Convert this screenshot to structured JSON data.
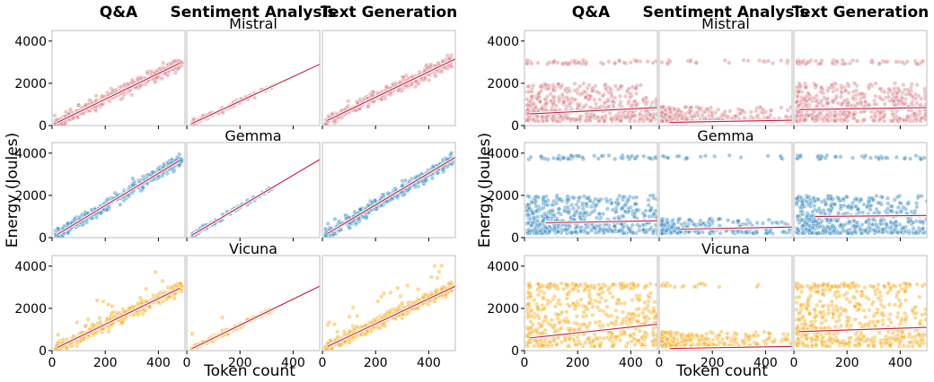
{
  "chart_data": [
    {
      "type": "scatter",
      "description_panel": "left",
      "columns": [
        "Q&A",
        "Sentiment Analysis",
        "Text Generation"
      ],
      "rows": [
        "Mistral",
        "Gemma",
        "Vicuna"
      ],
      "xlabel": "Token count",
      "ylabel": "Energy (Joules)",
      "xlim": [
        0,
        500
      ],
      "ylim": [
        0,
        4500
      ],
      "xticks": [
        0,
        200,
        400
      ],
      "yticks": [
        0,
        2000,
        4000
      ],
      "x_tick_labels": [
        "0",
        "200",
        "400"
      ],
      "y_tick_labels": [
        "0",
        "2000",
        "4000"
      ],
      "series_colors": {
        "Mistral": "#d9868c",
        "Gemma": "#3c8fc4",
        "Vicuna": "#f7ae1c"
      },
      "trend_lines": [
        {
          "row": "Mistral",
          "col": "Q&A",
          "x": [
            20,
            480
          ],
          "y": [
            150,
            2950
          ]
        },
        {
          "row": "Mistral",
          "col": "Sentiment Analysis",
          "x": [
            20,
            500
          ],
          "y": [
            100,
            2900
          ]
        },
        {
          "row": "Mistral",
          "col": "Text Generation",
          "x": [
            20,
            500
          ],
          "y": [
            250,
            3150
          ]
        },
        {
          "row": "Gemma",
          "col": "Q&A",
          "x": [
            20,
            480
          ],
          "y": [
            150,
            3650
          ]
        },
        {
          "row": "Gemma",
          "col": "Sentiment Analysis",
          "x": [
            20,
            500
          ],
          "y": [
            120,
            3700
          ]
        },
        {
          "row": "Gemma",
          "col": "Text Generation",
          "x": [
            20,
            500
          ],
          "y": [
            200,
            3800
          ]
        },
        {
          "row": "Vicuna",
          "col": "Q&A",
          "x": [
            20,
            480
          ],
          "y": [
            150,
            2950
          ]
        },
        {
          "row": "Vicuna",
          "col": "Sentiment Analysis",
          "x": [
            20,
            500
          ],
          "y": [
            100,
            3050
          ]
        },
        {
          "row": "Vicuna",
          "col": "Text Generation",
          "x": [
            20,
            500
          ],
          "y": [
            200,
            3050
          ]
        }
      ]
    },
    {
      "type": "scatter",
      "description_panel": "right",
      "columns": [
        "Q&A",
        "Sentiment Analysis",
        "Text Generation"
      ],
      "rows": [
        "Mistral",
        "Gemma",
        "Vicuna"
      ],
      "xlabel": "Token count",
      "ylabel": "Energy (Joules)",
      "xlim": [
        0,
        500
      ],
      "ylim": [
        0,
        4500
      ],
      "xticks": [
        0,
        200,
        400
      ],
      "yticks": [
        0,
        2000,
        4000
      ],
      "x_tick_labels": [
        "0",
        "200",
        "400"
      ],
      "y_tick_labels": [
        "0",
        "2000",
        "4000"
      ],
      "series_colors": {
        "Mistral": "#d9868c",
        "Gemma": "#3c8fc4",
        "Vicuna": "#f7ae1c"
      },
      "trend_lines": [
        {
          "row": "Mistral",
          "col": "Q&A",
          "x": [
            20,
            500
          ],
          "y": [
            550,
            850
          ]
        },
        {
          "row": "Mistral",
          "col": "Sentiment Analysis",
          "x": [
            40,
            500
          ],
          "y": [
            150,
            250
          ]
        },
        {
          "row": "Mistral",
          "col": "Text Generation",
          "x": [
            20,
            500
          ],
          "y": [
            750,
            850
          ]
        },
        {
          "row": "Gemma",
          "col": "Q&A",
          "x": [
            80,
            500
          ],
          "y": [
            700,
            800
          ]
        },
        {
          "row": "Gemma",
          "col": "Sentiment Analysis",
          "x": [
            80,
            500
          ],
          "y": [
            400,
            500
          ]
        },
        {
          "row": "Gemma",
          "col": "Text Generation",
          "x": [
            80,
            500
          ],
          "y": [
            1000,
            1050
          ]
        },
        {
          "row": "Vicuna",
          "col": "Q&A",
          "x": [
            20,
            500
          ],
          "y": [
            600,
            1250
          ]
        },
        {
          "row": "Vicuna",
          "col": "Sentiment Analysis",
          "x": [
            40,
            500
          ],
          "y": [
            100,
            200
          ]
        },
        {
          "row": "Vicuna",
          "col": "Text Generation",
          "x": [
            20,
            500
          ],
          "y": [
            900,
            1100
          ]
        }
      ]
    }
  ]
}
